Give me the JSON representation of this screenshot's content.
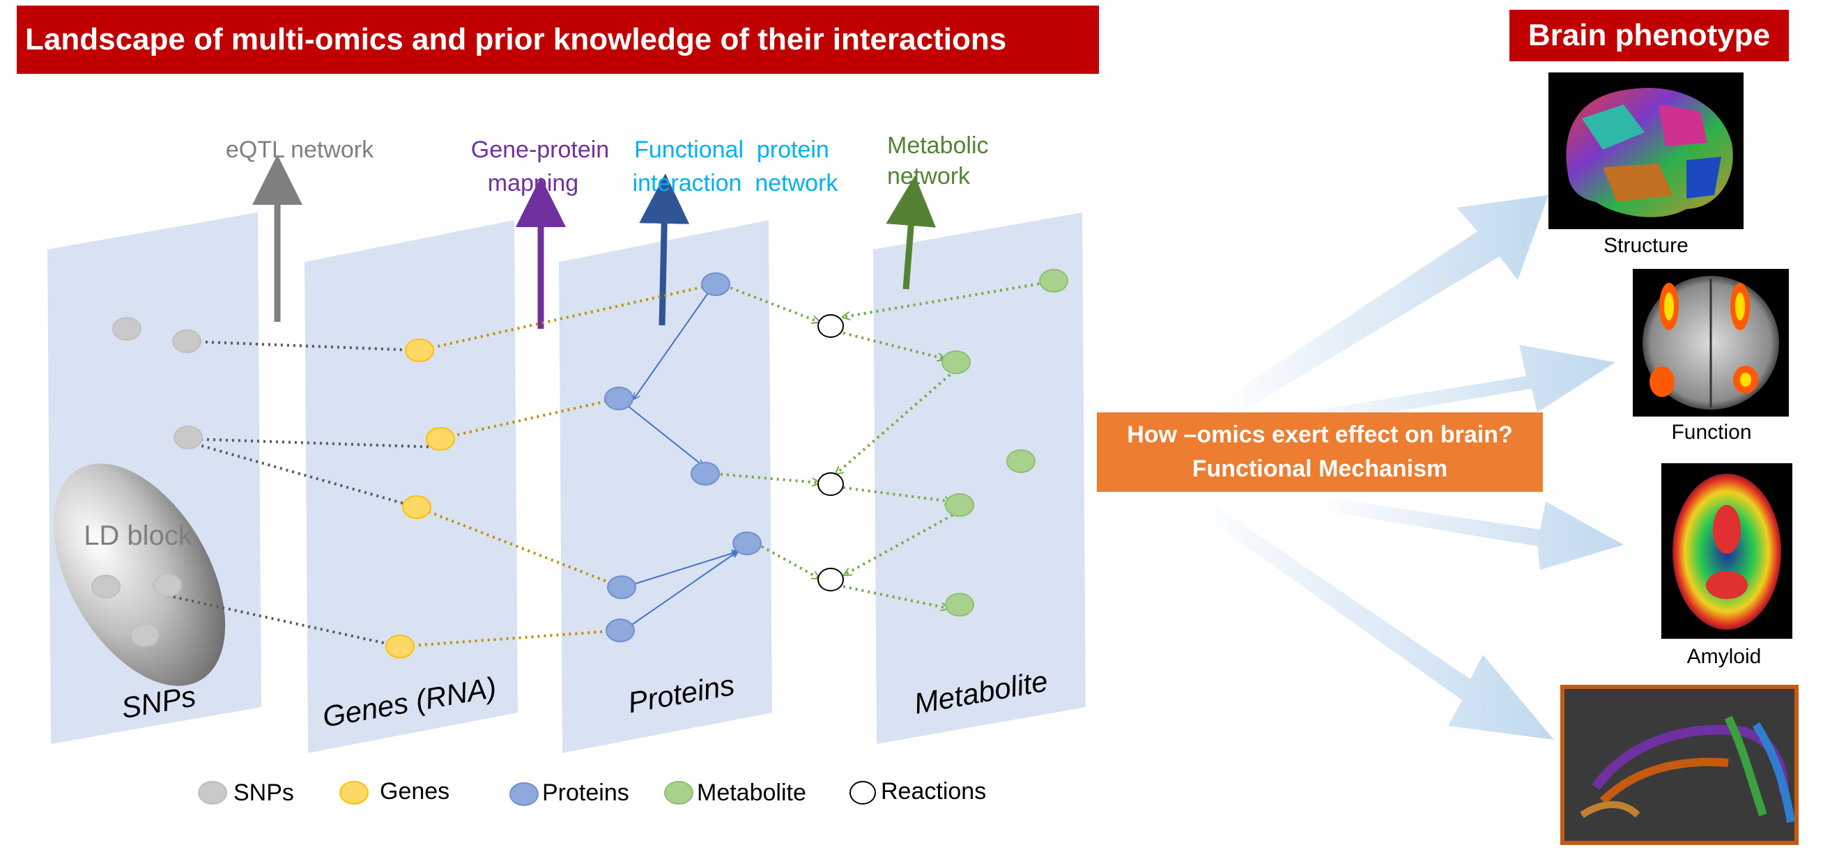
{
  "title": "Landscape of multi-omics and prior knowledge of their interactions",
  "phenotype_title": "Brain phenotype",
  "networks": {
    "eqtl": "eQTL network",
    "gene_protein_1": "Gene-protein",
    "gene_protein_2": "mapping",
    "func_protein_1": "Functional  protein",
    "func_protein_2": "interaction  network",
    "metabolic_1": "Metabolic",
    "metabolic_2": "network"
  },
  "layers": {
    "snps": "SNPs",
    "genes": "Genes (RNA)",
    "proteins": "Proteins",
    "metabolite": "Metabolite",
    "ld_block": "LD block"
  },
  "question_box": {
    "line1": "How –omics exert effect on brain?",
    "line2": "Functional Mechanism"
  },
  "phenotypes": {
    "structure": "Structure",
    "function": "Function",
    "amyloid": "Amyloid"
  },
  "legend": {
    "snps": "SNPs",
    "genes": "Genes",
    "proteins": "Proteins",
    "metabolite": "Metabolite",
    "reactions": "Reactions"
  },
  "colors": {
    "banner": "#c00000",
    "orange_box": "#ed7d31",
    "panel": "#d9e2f3",
    "snp": "#c9c9c9",
    "gene": "#ffd966",
    "protein": "#8ea9db",
    "metabolite": "#a9d18e",
    "eqtl_arrow": "#7f7f7f",
    "gene_protein_arrow": "#7030a0",
    "protein_arrow": "#2f5597",
    "metabolic_arrow": "#548235",
    "func_text": "#00b0f0",
    "arrow_fill": "#bdd7ee"
  }
}
